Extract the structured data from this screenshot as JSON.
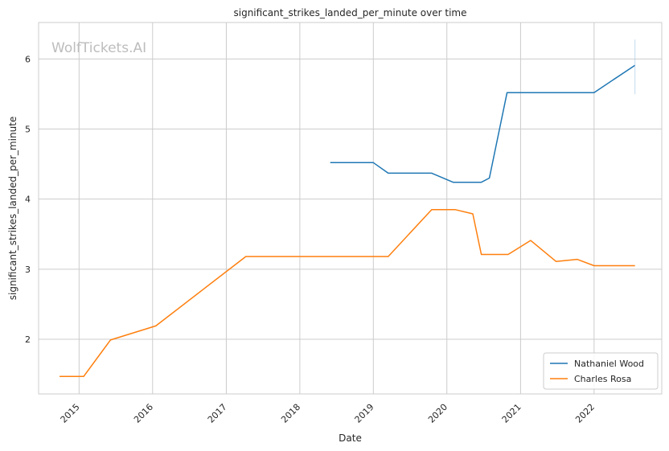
{
  "chart_data": {
    "type": "line",
    "title": "significant_strikes_landed_per_minute over time",
    "xlabel": "Date",
    "ylabel": "significant_strikes_landed_per_minute",
    "watermark": "WolfTickets.AI",
    "x_ticks": [
      "2015",
      "2016",
      "2017",
      "2018",
      "2019",
      "2020",
      "2021",
      "2022"
    ],
    "y_ticks": [
      2,
      3,
      4,
      5,
      6
    ],
    "xlim": [
      "2014-06-14",
      "2022-12-03"
    ],
    "ylim": [
      1.22,
      6.52
    ],
    "grid": true,
    "legend_position": "bottom-right",
    "series": [
      {
        "name": "Nathaniel Wood",
        "color": "#1f77b4",
        "points": [
          [
            "2018-06-01",
            4.52
          ],
          [
            "2019-01-01",
            4.52
          ],
          [
            "2019-03-16",
            4.37
          ],
          [
            "2019-10-18",
            4.37
          ],
          [
            "2020-02-01",
            4.24
          ],
          [
            "2020-04-20",
            4.24
          ],
          [
            "2020-06-20",
            4.24
          ],
          [
            "2020-07-30",
            4.3
          ],
          [
            "2020-10-26",
            5.52
          ],
          [
            "2021-05-01",
            5.52
          ],
          [
            "2022-01-01",
            5.52
          ],
          [
            "2022-07-23",
            5.91
          ]
        ]
      },
      {
        "name": "Charles Rosa",
        "color": "#ff7f0e",
        "points": [
          [
            "2014-09-26",
            1.47
          ],
          [
            "2015-01-24",
            1.47
          ],
          [
            "2015-06-06",
            1.99
          ],
          [
            "2016-01-17",
            2.19
          ],
          [
            "2017-04-08",
            3.18
          ],
          [
            "2019-03-16",
            3.18
          ],
          [
            "2019-10-18",
            3.85
          ],
          [
            "2020-02-10",
            3.85
          ],
          [
            "2020-05-09",
            3.79
          ],
          [
            "2020-06-20",
            3.21
          ],
          [
            "2020-10-31",
            3.21
          ],
          [
            "2021-02-20",
            3.41
          ],
          [
            "2021-06-26",
            3.11
          ],
          [
            "2021-10-09",
            3.14
          ],
          [
            "2022-01-01",
            3.05
          ],
          [
            "2022-07-23",
            3.05
          ]
        ]
      }
    ]
  }
}
